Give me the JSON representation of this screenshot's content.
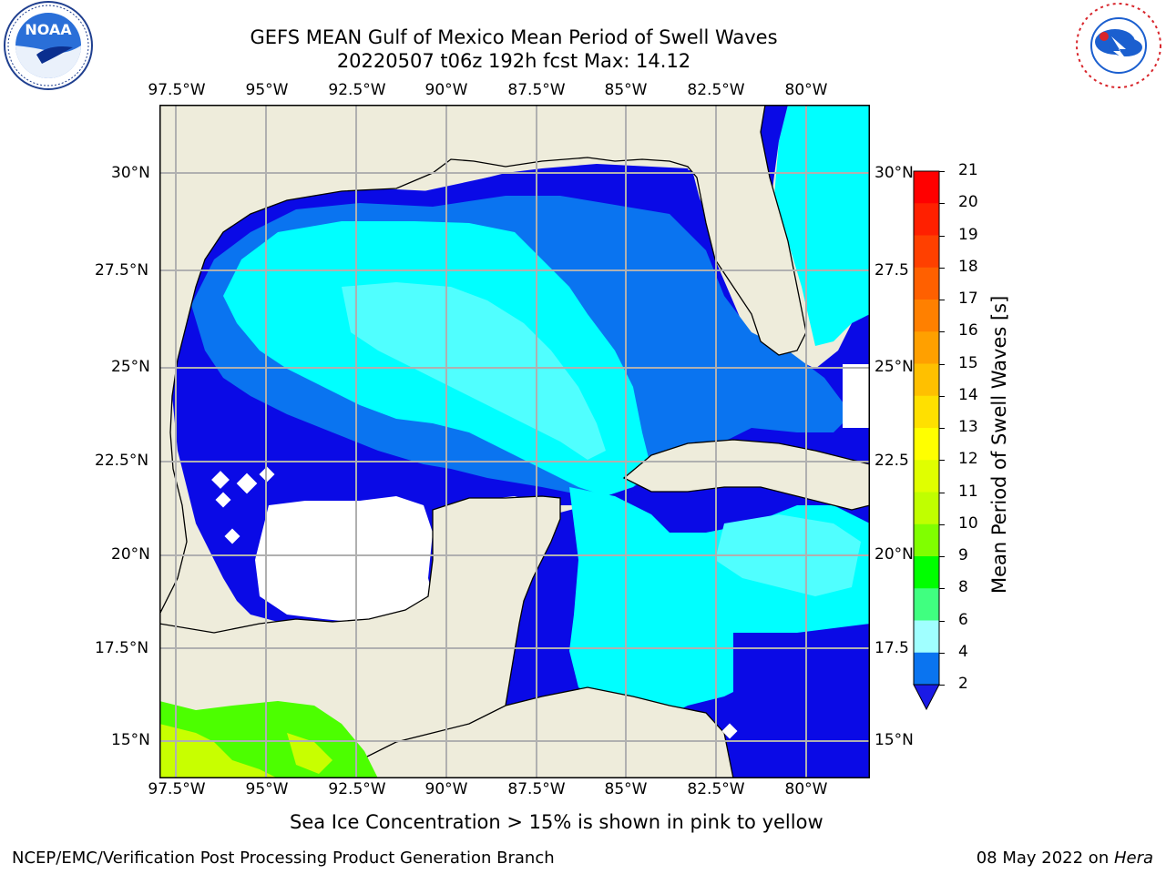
{
  "title": {
    "line1": "GEFS MEAN Gulf of Mexico Mean Period of Swell Waves",
    "line2": "20220507 t06z 192h fcst   Max: 14.12"
  },
  "map": {
    "region": "Gulf of Mexico",
    "lon_labels": [
      "97.5°W",
      "95°W",
      "92.5°W",
      "90°W",
      "87.5°W",
      "85°W",
      "82.5°W",
      "80°W"
    ],
    "lat_labels_left": [
      "30°N",
      "27.5°N",
      "25°N",
      "22.5°N",
      "20°N",
      "17.5°N",
      "15°N"
    ],
    "lat_labels_right": [
      "30°N",
      "27.5",
      "25°N",
      "22.5",
      "20°N",
      "17.5",
      "15°N"
    ],
    "grid": true,
    "colors": {
      "land": "#eeecdb",
      "deep_blue": "#0a0ae6",
      "mid_blue": "#0a74f0",
      "cyan": "#00ffff",
      "light_cyan": "#50ffff",
      "pale_cyan": "#96ffff",
      "green": "#4cff00",
      "yellow_green": "#c8ff00"
    }
  },
  "colorbar": {
    "label": "Mean Period of Swell Waves [s]",
    "ticks": [
      "21",
      "20",
      "19",
      "18",
      "17",
      "16",
      "15",
      "14",
      "13",
      "12",
      "11",
      "10",
      "9",
      "8",
      "6",
      "4",
      "2"
    ],
    "colors": [
      "#ff0000",
      "#ff2000",
      "#ff4000",
      "#ff6000",
      "#ff8000",
      "#ffa000",
      "#ffc000",
      "#ffe000",
      "#ffff00",
      "#e0ff00",
      "#c0ff00",
      "#80ff00",
      "#00ff00",
      "#40ff80",
      "#a0ffff",
      "#60ffff",
      "#00ffff",
      "#0a74f0"
    ]
  },
  "note": "Sea Ice Concentration > 15% is shown in pink to yellow",
  "footer": {
    "left": "NCEP/EMC/Verification Post Processing Product Generation Branch",
    "date": "08 May 2022 on ",
    "host": "Hera"
  },
  "logos": {
    "left": "NOAA",
    "right": "NATIONAL WEATHER SERVICE"
  }
}
